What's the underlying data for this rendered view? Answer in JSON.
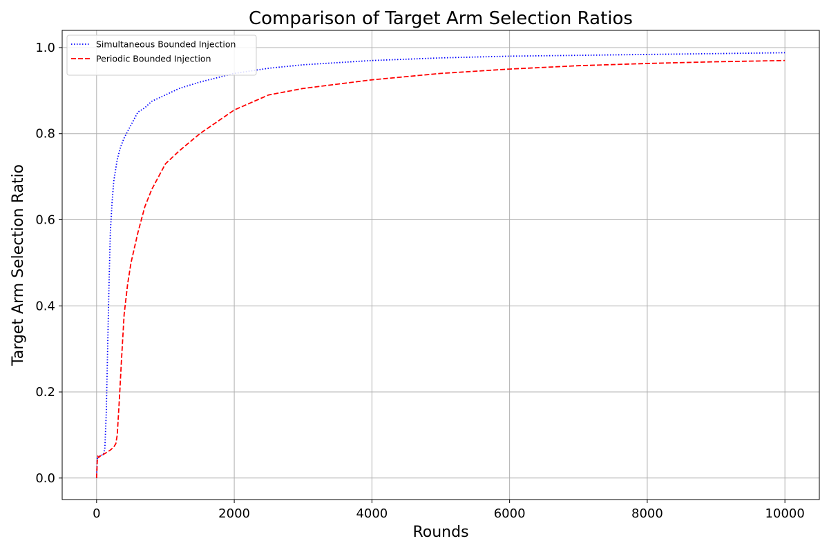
{
  "chart_data": {
    "type": "line",
    "title": "Comparison of Target Arm Selection Ratios",
    "xlabel": "Rounds",
    "ylabel": "Target Arm Selection Ratio",
    "xlim": [
      -500,
      10500
    ],
    "ylim": [
      -0.05,
      1.04
    ],
    "xticks": [
      0,
      2000,
      4000,
      6000,
      8000,
      10000
    ],
    "yticks": [
      0.0,
      0.2,
      0.4,
      0.6,
      0.8,
      1.0
    ],
    "xtick_labels": [
      "0",
      "2000",
      "4000",
      "6000",
      "8000",
      "10000"
    ],
    "ytick_labels": [
      "0.0",
      "0.2",
      "0.4",
      "0.6",
      "0.8",
      "1.0"
    ],
    "grid": true,
    "legend_position": "top-left",
    "series": [
      {
        "name": "Simultaneous Bounded Injection",
        "color": "#0000ff",
        "style": "dotted",
        "x": [
          0,
          10,
          30,
          60,
          100,
          120,
          140,
          160,
          180,
          200,
          225,
          250,
          300,
          350,
          400,
          500,
          600,
          700,
          800,
          1000,
          1200,
          1500,
          2000,
          2500,
          3000,
          4000,
          5000,
          6000,
          7000,
          8000,
          9000,
          10000
        ],
        "y": [
          0.0,
          0.045,
          0.05,
          0.052,
          0.055,
          0.07,
          0.15,
          0.3,
          0.45,
          0.57,
          0.64,
          0.69,
          0.74,
          0.77,
          0.79,
          0.82,
          0.85,
          0.86,
          0.875,
          0.89,
          0.905,
          0.92,
          0.94,
          0.952,
          0.96,
          0.97,
          0.976,
          0.98,
          0.982,
          0.984,
          0.986,
          0.988
        ]
      },
      {
        "name": "Periodic Bounded Injection",
        "color": "#ff0000",
        "style": "dashed",
        "x": [
          0,
          10,
          20,
          30,
          60,
          100,
          150,
          200,
          250,
          280,
          300,
          330,
          360,
          400,
          450,
          500,
          600,
          700,
          800,
          1000,
          1200,
          1500,
          2000,
          2500,
          3000,
          4000,
          5000,
          6000,
          7000,
          8000,
          9000,
          10000
        ],
        "y": [
          0.0,
          0.04,
          0.05,
          0.048,
          0.052,
          0.055,
          0.06,
          0.065,
          0.072,
          0.08,
          0.1,
          0.18,
          0.27,
          0.38,
          0.45,
          0.5,
          0.57,
          0.63,
          0.67,
          0.73,
          0.76,
          0.8,
          0.855,
          0.89,
          0.905,
          0.925,
          0.94,
          0.95,
          0.958,
          0.963,
          0.967,
          0.97
        ]
      }
    ]
  }
}
